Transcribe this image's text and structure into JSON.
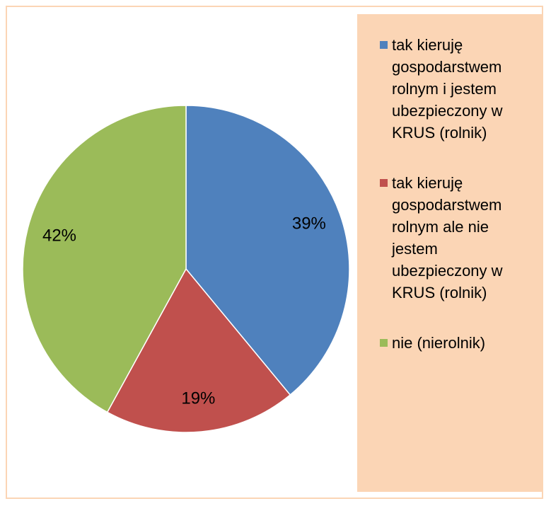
{
  "chart_data": {
    "type": "pie",
    "categories": [
      "tak kieruję gospodarstwem rolnym i jestem ubezpieczony w KRUS (rolnik)",
      "tak kieruję gospodarstwem rolnym ale nie jestem ubezpieczony w KRUS (rolnik)",
      "nie (nierolnik)"
    ],
    "values": [
      39,
      19,
      42
    ],
    "value_labels": [
      "39%",
      "19%",
      "42%"
    ],
    "colors": [
      "#4f81bd",
      "#c0504d",
      "#9bbb59"
    ],
    "legend": "right"
  }
}
